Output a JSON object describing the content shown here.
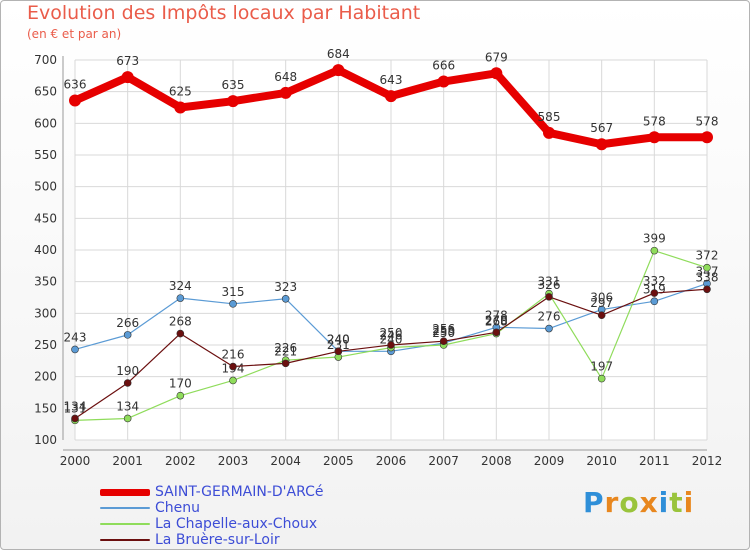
{
  "header": {
    "title": "Evolution des Impôts locaux par Habitant",
    "subtitle": "(en € et par an)"
  },
  "logo": {
    "text": "Proxiti",
    "letters": [
      "P",
      "r",
      "o",
      "x",
      "i",
      "t",
      "i"
    ],
    "colors": [
      "#2f8fd8",
      "#e8871e",
      "#9ac43c",
      "#e8871e",
      "#2f8fd8",
      "#9ac43c",
      "#e8871e"
    ]
  },
  "chart_data": {
    "type": "line",
    "title": "Evolution des Impôts locaux par Habitant",
    "subtitle": "(en € et par an)",
    "xlabel": "",
    "ylabel": "",
    "x": [
      "2000",
      "2001",
      "2002",
      "2003",
      "2004",
      "2005",
      "2006",
      "2007",
      "2008",
      "2009",
      "2010",
      "2011",
      "2012"
    ],
    "ylim": [
      100,
      700
    ],
    "yticks": [
      100,
      150,
      200,
      250,
      300,
      350,
      400,
      450,
      500,
      550,
      600,
      650,
      700
    ],
    "grid": true,
    "legend_position": "bottom-left",
    "series": [
      {
        "name": "SAINT-GERMAIN-D'ARCé",
        "color": "#e60000",
        "values": [
          636,
          673,
          625,
          635,
          648,
          684,
          643,
          666,
          679,
          585,
          567,
          578,
          578
        ]
      },
      {
        "name": "Chenu",
        "color": "#5b9bd5",
        "values": [
          243,
          266,
          324,
          315,
          323,
          240,
          240,
          253,
          278,
          276,
          306,
          319,
          347
        ]
      },
      {
        "name": "La Chapelle-aux-Choux",
        "color": "#8fdc5b",
        "values": [
          131,
          134,
          170,
          194,
          226,
          231,
          246,
          250,
          268,
          331,
          197,
          399,
          372
        ]
      },
      {
        "name": "La Bruère-sur-Loir",
        "color": "#6b0f0f",
        "values": [
          134,
          190,
          268,
          216,
          221,
          240,
          250,
          256,
          270,
          326,
          297,
          332,
          338
        ]
      }
    ]
  }
}
